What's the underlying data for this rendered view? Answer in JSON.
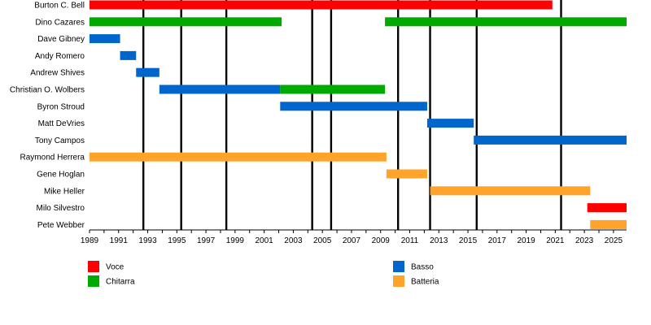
{
  "chart_data": {
    "type": "timeline",
    "x_range": [
      1989,
      2025.9
    ],
    "x_ticks": [
      1989,
      1991,
      1993,
      1995,
      1997,
      1999,
      2001,
      2003,
      2005,
      2007,
      2009,
      2011,
      2013,
      2015,
      2017,
      2019,
      2021,
      2023,
      2025
    ],
    "event_lines": [
      1992.7,
      1995.3,
      1998.4,
      2004.3,
      2005.6,
      2010.2,
      2012.4,
      2015.6,
      2021.4
    ],
    "roles": {
      "voce": {
        "label": "Voce",
        "color": "#ff0000"
      },
      "chitarra": {
        "label": "Chitarra",
        "color": "#00aa00"
      },
      "basso": {
        "label": "Basso",
        "color": "#0066cc"
      },
      "batteria": {
        "label": "Batteria",
        "color": "#ffa32b"
      }
    },
    "legend": [
      {
        "role": "voce",
        "column": 0,
        "row": 0
      },
      {
        "role": "chitarra",
        "column": 0,
        "row": 1
      },
      {
        "role": "basso",
        "column": 1,
        "row": 0
      },
      {
        "role": "batteria",
        "column": 1,
        "row": 1
      }
    ],
    "members": [
      {
        "name": "Burton C. Bell",
        "periods": [
          {
            "role": "voce",
            "start": 1989.0,
            "end": 2020.8
          }
        ]
      },
      {
        "name": "Dino Cazares",
        "periods": [
          {
            "role": "chitarra",
            "start": 1989.0,
            "end": 2002.2
          },
          {
            "role": "chitarra",
            "start": 2009.3,
            "end": 2025.9
          }
        ]
      },
      {
        "name": "Dave Gibney",
        "periods": [
          {
            "role": "basso",
            "start": 1989.0,
            "end": 1991.1
          }
        ]
      },
      {
        "name": "Andy Romero",
        "periods": [
          {
            "role": "basso",
            "start": 1991.1,
            "end": 1992.2
          }
        ]
      },
      {
        "name": "Andrew Shives",
        "periods": [
          {
            "role": "basso",
            "start": 1992.2,
            "end": 1993.8
          }
        ]
      },
      {
        "name": "Christian O. Wolbers",
        "periods": [
          {
            "role": "basso",
            "start": 1993.8,
            "end": 2002.1
          },
          {
            "role": "chitarra",
            "start": 2002.1,
            "end": 2009.3
          }
        ]
      },
      {
        "name": "Byron Stroud",
        "periods": [
          {
            "role": "basso",
            "start": 2002.1,
            "end": 2012.2
          }
        ]
      },
      {
        "name": "Matt DeVries",
        "periods": [
          {
            "role": "basso",
            "start": 2012.2,
            "end": 2015.4
          }
        ]
      },
      {
        "name": "Tony Campos",
        "periods": [
          {
            "role": "basso",
            "start": 2015.4,
            "end": 2025.9
          }
        ]
      },
      {
        "name": "Raymond Herrera",
        "periods": [
          {
            "role": "batteria",
            "start": 1989.0,
            "end": 2009.4
          }
        ]
      },
      {
        "name": "Gene Hoglan",
        "periods": [
          {
            "role": "batteria",
            "start": 2009.4,
            "end": 2012.2
          }
        ]
      },
      {
        "name": "Mike Heller",
        "periods": [
          {
            "role": "batteria",
            "start": 2012.4,
            "end": 2023.4
          }
        ]
      },
      {
        "name": "Milo Silvestro",
        "periods": [
          {
            "role": "voce",
            "start": 2023.2,
            "end": 2025.9
          }
        ]
      },
      {
        "name": "Pete Webber",
        "periods": [
          {
            "role": "batteria",
            "start": 2023.4,
            "end": 2025.9
          }
        ]
      }
    ]
  }
}
